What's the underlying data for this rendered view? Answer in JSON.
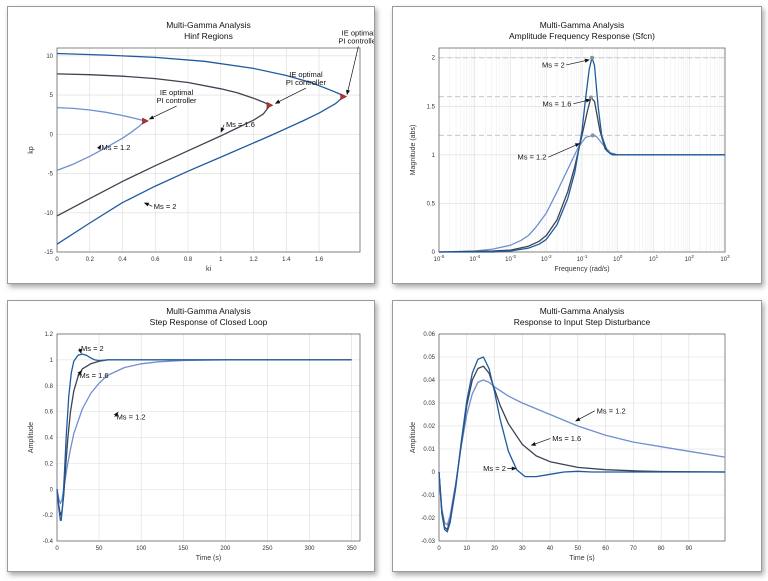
{
  "colors": {
    "ms12": "#6f8fd0",
    "ms16": "#3d4350",
    "ms2": "#1f5aa0",
    "marker": "#b83030",
    "grid": "#dcdcdc",
    "refline": "#c2c7d2"
  },
  "chart_data": [
    {
      "type": "line",
      "title": "Multi-Gamma Analysis",
      "subtitle": "Hinf Regions",
      "xlabel": "ki",
      "ylabel": "kp",
      "xlim": [
        0,
        1.85
      ],
      "ylim": [
        -15,
        11
      ],
      "xticks": [
        0,
        0.2,
        0.4,
        0.6,
        0.8,
        1,
        1.2,
        1.4,
        1.6
      ],
      "yticks": [
        -15,
        -10,
        -5,
        0,
        5,
        10
      ],
      "grid": true,
      "series": [
        {
          "name": "Ms = 1.2",
          "key": "ms12",
          "tip": [
            0.54,
            1.7
          ],
          "x": [
            0,
            0.1,
            0.2,
            0.3,
            0.4,
            0.45,
            0.5,
            0.54,
            0.5,
            0.45,
            0.4,
            0.3,
            0.2,
            0.1,
            0
          ],
          "y": [
            3.4,
            3.3,
            3.1,
            2.8,
            2.4,
            2.15,
            1.9,
            1.7,
            1.0,
            0.2,
            -0.5,
            -1.7,
            -2.8,
            -3.8,
            -4.6
          ]
        },
        {
          "name": "Ms = 1.6",
          "key": "ms16",
          "tip": [
            1.3,
            3.7
          ],
          "x": [
            0,
            0.2,
            0.4,
            0.6,
            0.8,
            1.0,
            1.1,
            1.2,
            1.26,
            1.3,
            1.26,
            1.2,
            1.1,
            1.0,
            0.8,
            0.6,
            0.4,
            0.2,
            0
          ],
          "y": [
            7.7,
            7.6,
            7.4,
            7.1,
            6.6,
            5.8,
            5.3,
            4.6,
            4.1,
            3.7,
            2.6,
            1.8,
            0.8,
            -0.2,
            -2.1,
            -4.0,
            -6.0,
            -8.2,
            -10.4
          ]
        },
        {
          "name": "Ms = 2",
          "key": "ms2",
          "tip": [
            1.75,
            4.8
          ],
          "x": [
            0,
            0.3,
            0.6,
            0.9,
            1.2,
            1.4,
            1.55,
            1.65,
            1.72,
            1.75,
            1.7,
            1.6,
            1.5,
            1.3,
            1.0,
            0.8,
            0.6,
            0.4,
            0.2,
            0
          ],
          "y": [
            10.3,
            10.1,
            9.8,
            9.3,
            8.4,
            7.5,
            6.6,
            5.8,
            5.2,
            4.8,
            3.9,
            2.7,
            1.7,
            -0.2,
            -2.9,
            -4.7,
            -6.6,
            -8.7,
            -11.3,
            -14.0
          ]
        }
      ],
      "annotations": [
        {
          "lines": [
            "IE optimal",
            "PI controller"
          ],
          "x": 0.73,
          "y": 5.0,
          "ax": 0.56,
          "ay": 1.9
        },
        {
          "lines": [
            "IE optimal",
            "PI controller"
          ],
          "x": 1.52,
          "y": 7.3,
          "ax": 1.33,
          "ay": 3.9
        },
        {
          "lines": [
            "IE optimal",
            "PI controller"
          ],
          "x": 1.84,
          "y": 12.6,
          "ax": 1.77,
          "ay": 5.0
        },
        {
          "lines": [
            "Ms = 1.2"
          ],
          "x": 0.36,
          "y": -2.0,
          "ax": 0.27,
          "ay": -1.3
        },
        {
          "lines": [
            "Ms = 1.6"
          ],
          "x": 1.12,
          "y": 0.9,
          "ax": 1.0,
          "ay": 0.2
        },
        {
          "lines": [
            "Ms = 2"
          ],
          "x": 0.66,
          "y": -9.5,
          "ax": 0.53,
          "ay": -8.7
        }
      ]
    },
    {
      "type": "line",
      "title": "Multi-Gamma Analysis",
      "subtitle": "Amplitude Frequency Response (Sfcn)",
      "xlabel": "Frequency (rad/s)",
      "ylabel": "Magnitude (abs)",
      "xscale": "log",
      "xlim": [
        -5,
        3
      ],
      "ylim": [
        0,
        2.1
      ],
      "xtick_labels": [
        "10-5",
        "10-4",
        "10-3",
        "10-2",
        "10-1",
        "100",
        "101",
        "102",
        "103"
      ],
      "yticks": [
        0,
        0.5,
        1,
        1.5,
        2
      ],
      "grid": true,
      "ref_lines": [
        2,
        1.6,
        1.2
      ],
      "series": [
        {
          "name": "Ms = 1.2",
          "key": "ms12",
          "x": [
            -5,
            -4,
            -3.5,
            -3,
            -2.7,
            -2.5,
            -2.3,
            -2,
            -1.7,
            -1.4,
            -1.1,
            -0.9,
            -0.7,
            -0.6,
            -0.4,
            -0.2,
            0,
            1,
            3
          ],
          "y": [
            0,
            0.01,
            0.03,
            0.07,
            0.12,
            0.17,
            0.25,
            0.4,
            0.62,
            0.85,
            1.08,
            1.18,
            1.2,
            1.19,
            1.1,
            1.02,
            1.0,
            1.0,
            1.0
          ]
        },
        {
          "name": "Ms = 1.6",
          "key": "ms16",
          "x": [
            -5,
            -3.5,
            -3,
            -2.5,
            -2.2,
            -2,
            -1.7,
            -1.4,
            -1.2,
            -1.0,
            -0.85,
            -0.75,
            -0.65,
            -0.5,
            -0.35,
            -0.2,
            0,
            1,
            3
          ],
          "y": [
            0,
            0.01,
            0.02,
            0.06,
            0.11,
            0.17,
            0.33,
            0.62,
            0.88,
            1.2,
            1.45,
            1.59,
            1.55,
            1.25,
            1.06,
            1.01,
            1.0,
            1.0,
            1.0
          ]
        },
        {
          "name": "Ms = 2",
          "key": "ms2",
          "x": [
            -5,
            -3.5,
            -3,
            -2.5,
            -2.2,
            -2,
            -1.7,
            -1.4,
            -1.2,
            -1.0,
            -0.9,
            -0.8,
            -0.72,
            -0.65,
            -0.55,
            -0.45,
            -0.3,
            -0.15,
            0,
            1,
            3
          ],
          "y": [
            0,
            0.0,
            0.01,
            0.04,
            0.08,
            0.13,
            0.28,
            0.55,
            0.82,
            1.25,
            1.58,
            1.88,
            2.0,
            1.92,
            1.5,
            1.2,
            1.04,
            1.0,
            1.0,
            1.0,
            1.0
          ]
        }
      ],
      "annotations": [
        {
          "lines": [
            "Ms = 2"
          ],
          "x": -1.8,
          "y": 1.9,
          "ax": -0.78,
          "ay": 1.98
        },
        {
          "lines": [
            "Ms = 1.6"
          ],
          "x": -1.7,
          "y": 1.5,
          "ax": -0.75,
          "ay": 1.57
        },
        {
          "lines": [
            "Ms = 1.2"
          ],
          "x": -2.4,
          "y": 0.95,
          "ax": -1.05,
          "ay": 1.12
        }
      ]
    },
    {
      "type": "line",
      "title": "Multi-Gamma Analysis",
      "subtitle": "Step Response of Closed Loop",
      "xlabel": "Time (s)",
      "ylabel": "Amplitude",
      "xlim": [
        0,
        360
      ],
      "ylim": [
        -0.4,
        1.2
      ],
      "xticks": [
        0,
        50,
        100,
        150,
        200,
        250,
        300,
        350
      ],
      "yticks": [
        -0.4,
        -0.2,
        0,
        0.2,
        0.4,
        0.6,
        0.8,
        1,
        1.2
      ],
      "grid": true,
      "series": [
        {
          "name": "Ms = 1.2",
          "key": "ms12",
          "x": [
            0,
            2,
            4,
            6,
            8,
            12,
            16,
            20,
            30,
            40,
            50,
            60,
            80,
            100,
            120,
            150,
            200,
            250,
            350
          ],
          "y": [
            0,
            -0.07,
            -0.11,
            -0.08,
            0.0,
            0.17,
            0.31,
            0.43,
            0.62,
            0.74,
            0.82,
            0.88,
            0.94,
            0.97,
            0.985,
            0.995,
            1.0,
            1.0,
            1.0
          ]
        },
        {
          "name": "Ms = 1.6",
          "key": "ms16",
          "x": [
            0,
            2,
            4,
            6,
            8,
            10,
            13,
            16,
            20,
            25,
            30,
            40,
            50,
            60,
            80,
            100,
            350
          ],
          "y": [
            0,
            -0.12,
            -0.2,
            -0.17,
            -0.05,
            0.15,
            0.4,
            0.6,
            0.76,
            0.87,
            0.93,
            0.97,
            0.99,
            1.0,
            1.0,
            1.0,
            1.0
          ]
        },
        {
          "name": "Ms = 2",
          "key": "ms2",
          "x": [
            0,
            2,
            4,
            5,
            7,
            9,
            11,
            14,
            17,
            20,
            25,
            30,
            35,
            40,
            45,
            50,
            60,
            80,
            350
          ],
          "y": [
            0,
            -0.14,
            -0.24,
            -0.24,
            -0.1,
            0.15,
            0.42,
            0.72,
            0.9,
            0.99,
            1.035,
            1.045,
            1.035,
            1.015,
            1.0,
            0.995,
            1.0,
            1.0,
            1.0
          ]
        }
      ],
      "annotations": [
        {
          "lines": [
            "Ms = 2"
          ],
          "x": 42,
          "y": 1.07,
          "ax": 29,
          "ay": 1.045
        },
        {
          "lines": [
            "Ms = 1.6"
          ],
          "x": 44,
          "y": 0.86,
          "ax": 30,
          "ay": 0.92
        },
        {
          "lines": [
            "Ms = 1.2"
          ],
          "x": 88,
          "y": 0.54,
          "ax": 73,
          "ay": 0.6
        }
      ]
    },
    {
      "type": "line",
      "title": "Multi-Gamma Analysis",
      "subtitle": "Response to Input Step Disturbance",
      "xlabel": "Time (s)",
      "ylabel": "Amplitude",
      "xlim": [
        0,
        103
      ],
      "ylim": [
        -0.03,
        0.06
      ],
      "xticks": [
        0,
        10,
        20,
        30,
        40,
        50,
        60,
        70,
        80,
        90
      ],
      "yticks": [
        -0.03,
        -0.02,
        -0.01,
        0,
        0.01,
        0.02,
        0.03,
        0.04,
        0.05,
        0.06
      ],
      "grid": true,
      "series": [
        {
          "name": "Ms = 1.2",
          "key": "ms12",
          "x": [
            0,
            1,
            2,
            3,
            4,
            6,
            8,
            10,
            12,
            14,
            16,
            18,
            20,
            25,
            30,
            40,
            50,
            60,
            70,
            80,
            90,
            103
          ],
          "y": [
            0,
            -0.016,
            -0.022,
            -0.023,
            -0.019,
            -0.005,
            0.011,
            0.025,
            0.034,
            0.039,
            0.04,
            0.039,
            0.037,
            0.033,
            0.03,
            0.025,
            0.02,
            0.016,
            0.013,
            0.011,
            0.009,
            0.0065
          ]
        },
        {
          "name": "Ms = 1.6",
          "key": "ms16",
          "x": [
            0,
            1,
            2,
            3,
            4,
            6,
            8,
            10,
            12,
            14,
            16,
            18,
            20,
            22,
            25,
            30,
            35,
            40,
            50,
            60,
            70,
            80,
            103
          ],
          "y": [
            0,
            -0.017,
            -0.024,
            -0.025,
            -0.021,
            -0.006,
            0.012,
            0.029,
            0.04,
            0.045,
            0.046,
            0.043,
            0.036,
            0.029,
            0.021,
            0.012,
            0.007,
            0.0045,
            0.002,
            0.001,
            0.0005,
            0.0002,
            0
          ]
        },
        {
          "name": "Ms = 2",
          "key": "ms2",
          "x": [
            0,
            1,
            2,
            3,
            4,
            6,
            8,
            10,
            12,
            14,
            16,
            18,
            20,
            22,
            25,
            28,
            31,
            35,
            40,
            45,
            50,
            55,
            60,
            103
          ],
          "y": [
            0,
            -0.018,
            -0.025,
            -0.026,
            -0.022,
            -0.007,
            0.013,
            0.031,
            0.043,
            0.049,
            0.05,
            0.045,
            0.035,
            0.023,
            0.009,
            0.001,
            -0.002,
            -0.002,
            -0.001,
            0.0,
            0.0003,
            0.0,
            0.0,
            0
          ]
        }
      ],
      "annotations": [
        {
          "lines": [
            "Ms = 1.2"
          ],
          "x": 62,
          "y": 0.0255,
          "ax": 49,
          "ay": 0.022
        },
        {
          "lines": [
            "Ms = 1.6"
          ],
          "x": 46,
          "y": 0.0135,
          "ax": 33,
          "ay": 0.0115
        },
        {
          "lines": [
            "Ms = 2"
          ],
          "x": 20,
          "y": 0.0005,
          "ax": 28,
          "ay": 0.0015
        }
      ]
    }
  ]
}
